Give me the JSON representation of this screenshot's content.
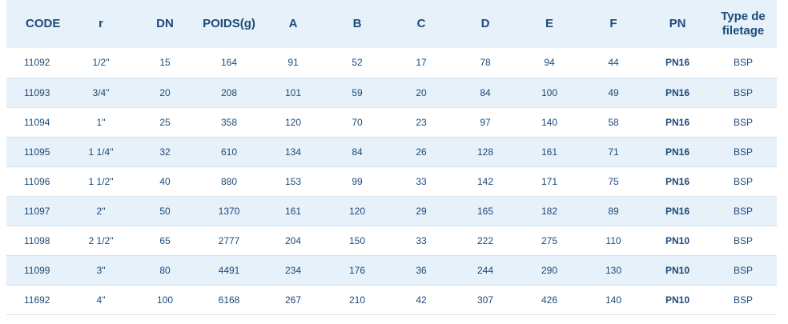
{
  "table": {
    "headers": [
      "CODE",
      "r",
      "DN",
      "POIDS(g)",
      "A",
      "B",
      "C",
      "D",
      "E",
      "F",
      "PN",
      "Type de filetage"
    ],
    "rows": [
      [
        "11092",
        "1/2\"",
        "15",
        "164",
        "91",
        "52",
        "17",
        "78",
        "94",
        "44",
        "PN16",
        "BSP"
      ],
      [
        "11093",
        "3/4\"",
        "20",
        "208",
        "101",
        "59",
        "20",
        "84",
        "100",
        "49",
        "PN16",
        "BSP"
      ],
      [
        "11094",
        "1\"",
        "25",
        "358",
        "120",
        "70",
        "23",
        "97",
        "140",
        "58",
        "PN16",
        "BSP"
      ],
      [
        "11095",
        "1 1/4\"",
        "32",
        "610",
        "134",
        "84",
        "26",
        "128",
        "161",
        "71",
        "PN16",
        "BSP"
      ],
      [
        "11096",
        "1 1/2\"",
        "40",
        "880",
        "153",
        "99",
        "33",
        "142",
        "171",
        "75",
        "PN16",
        "BSP"
      ],
      [
        "11097",
        "2\"",
        "50",
        "1370",
        "161",
        "120",
        "29",
        "165",
        "182",
        "89",
        "PN16",
        "BSP"
      ],
      [
        "11098",
        "2 1/2\"",
        "65",
        "2777",
        "204",
        "150",
        "33",
        "222",
        "275",
        "110",
        "PN10",
        "BSP"
      ],
      [
        "11099",
        "3\"",
        "80",
        "4491",
        "234",
        "176",
        "36",
        "244",
        "290",
        "130",
        "PN10",
        "BSP"
      ],
      [
        "11692",
        "4\"",
        "100",
        "6168",
        "267",
        "210",
        "42",
        "307",
        "426",
        "140",
        "PN10",
        "BSP"
      ]
    ]
  },
  "colors": {
    "text": "#1e4a7a",
    "stripe": "#e6f1f9",
    "background": "#ffffff"
  }
}
